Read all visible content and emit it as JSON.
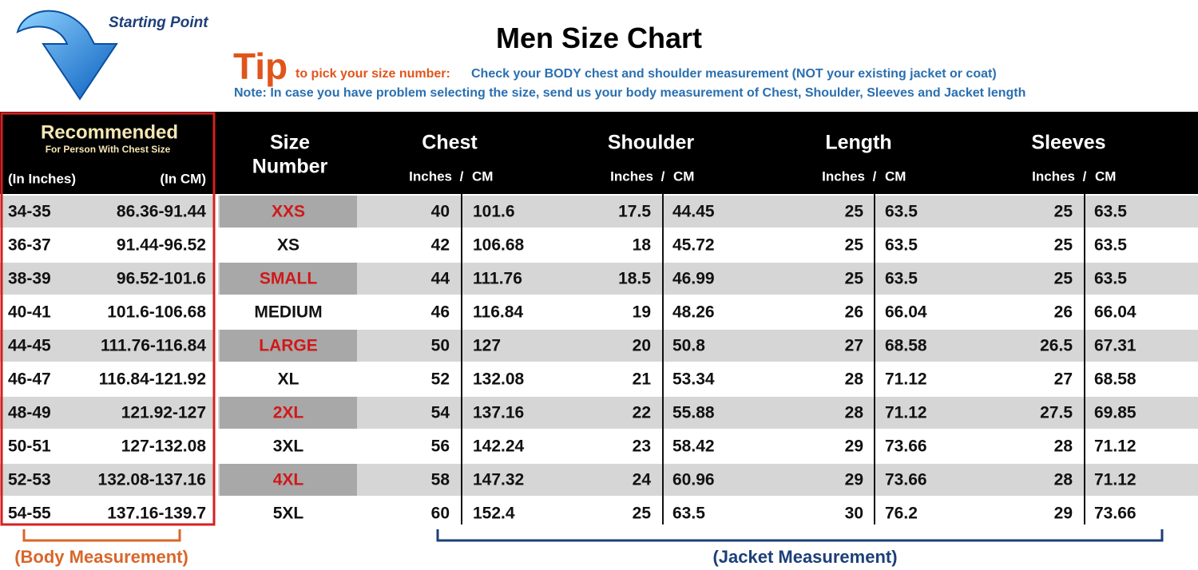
{
  "header": {
    "starting_point": "Starting Point",
    "title": "Men Size Chart",
    "tip_word": "Tip",
    "tip_lead": "to pick your size number:",
    "tip_text": "Check your BODY chest and shoulder measurement (NOT your existing jacket or coat)",
    "note": "Note: In case you have problem selecting the size, send us your body measurement of Chest, Shoulder, Sleeves and Jacket length"
  },
  "table": {
    "recommended": {
      "title": "Recommended",
      "subtitle": "For Person With Chest Size",
      "inches": "(In Inches)",
      "cm": "(In CM)"
    },
    "size_header": [
      "Size",
      "Number"
    ],
    "measure_headers": [
      "Chest",
      "Shoulder",
      "Length",
      "Sleeves"
    ],
    "unit_labels": {
      "inches": "Inches",
      "slash": "/",
      "cm": "CM"
    },
    "rows": [
      [
        "34-35",
        "86.36-91.44",
        "XXS",
        "40",
        "101.6",
        "17.5",
        "44.45",
        "25",
        "63.5",
        "25",
        "63.5"
      ],
      [
        "36-37",
        "91.44-96.52",
        "XS",
        "42",
        "106.68",
        "18",
        "45.72",
        "25",
        "63.5",
        "25",
        "63.5"
      ],
      [
        "38-39",
        "96.52-101.6",
        "SMALL",
        "44",
        "111.76",
        "18.5",
        "46.99",
        "25",
        "63.5",
        "25",
        "63.5"
      ],
      [
        "40-41",
        "101.6-106.68",
        "MEDIUM",
        "46",
        "116.84",
        "19",
        "48.26",
        "26",
        "66.04",
        "26",
        "66.04"
      ],
      [
        "44-45",
        "111.76-116.84",
        "LARGE",
        "50",
        "127",
        "20",
        "50.8",
        "27",
        "68.58",
        "26.5",
        "67.31"
      ],
      [
        "46-47",
        "116.84-121.92",
        "XL",
        "52",
        "132.08",
        "21",
        "53.34",
        "28",
        "71.12",
        "27",
        "68.58"
      ],
      [
        "48-49",
        "121.92-127",
        "2XL",
        "54",
        "137.16",
        "22",
        "55.88",
        "28",
        "71.12",
        "27.5",
        "69.85"
      ],
      [
        "50-51",
        "127-132.08",
        "3XL",
        "56",
        "142.24",
        "23",
        "58.42",
        "29",
        "73.66",
        "28",
        "71.12"
      ],
      [
        "52-53",
        "132.08-137.16",
        "4XL",
        "58",
        "147.32",
        "24",
        "60.96",
        "29",
        "73.66",
        "28",
        "71.12"
      ],
      [
        "54-55",
        "137.16-139.7",
        "5XL",
        "60",
        "152.4",
        "25",
        "63.5",
        "30",
        "76.2",
        "29",
        "73.66"
      ]
    ]
  },
  "footer": {
    "body": "(Body Measurement)",
    "jacket": "(Jacket Measurement)"
  }
}
